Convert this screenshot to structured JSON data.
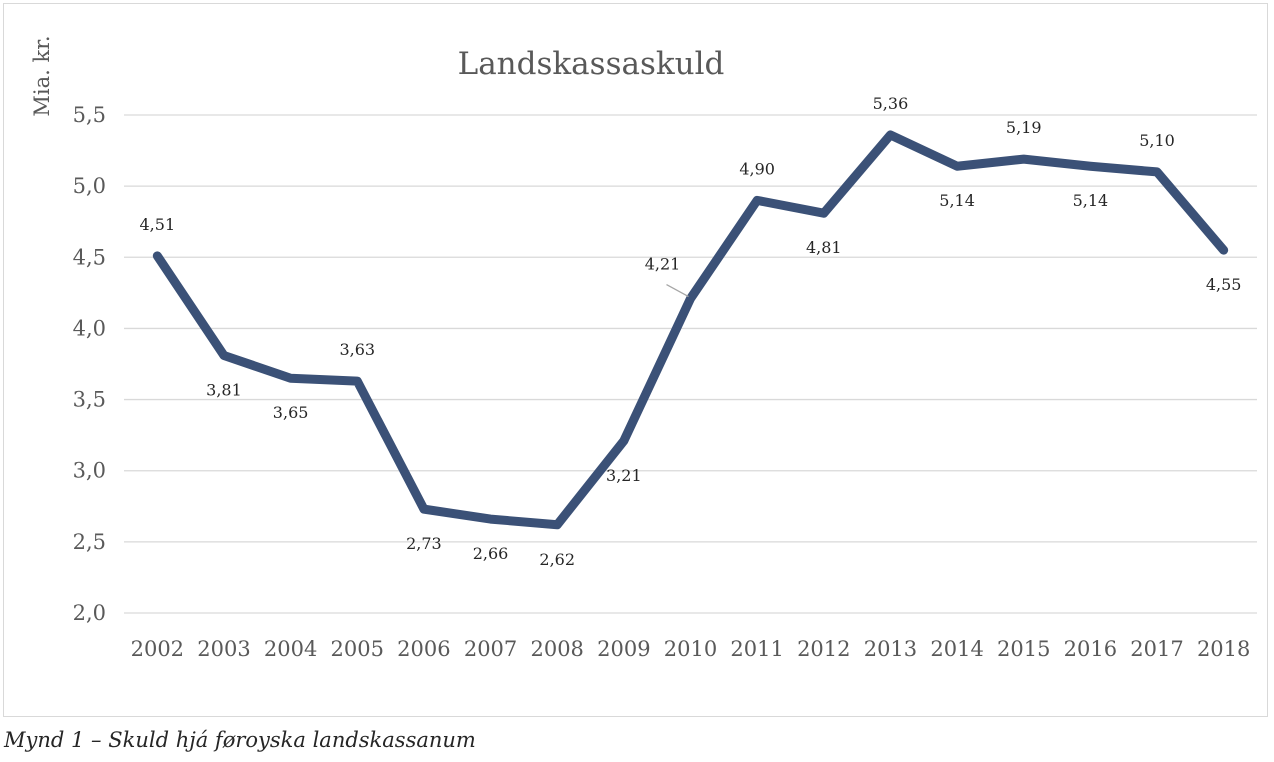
{
  "chart_data": {
    "type": "line",
    "title": "Landskassaskuld",
    "ylabel": "Mia. kr.",
    "xlabel": "",
    "categories": [
      "2002",
      "2003",
      "2004",
      "2005",
      "2006",
      "2007",
      "2008",
      "2009",
      "2010",
      "2011",
      "2012",
      "2013",
      "2014",
      "2015",
      "2016",
      "2017",
      "2018"
    ],
    "series": [
      {
        "name": "",
        "values": [
          4.51,
          3.81,
          3.65,
          3.63,
          2.73,
          2.66,
          2.62,
          3.21,
          4.21,
          4.9,
          4.81,
          5.36,
          5.14,
          5.19,
          5.14,
          5.1,
          4.55
        ]
      }
    ],
    "data_labels": [
      "4,51",
      "3,81",
      "3,65",
      "3,63",
      "2,73",
      "2,66",
      "2,62",
      "3,21",
      "4,21",
      "4,90",
      "4,81",
      "5,36",
      "5,14",
      "5,19",
      "5,14",
      "5,10",
      "4,55"
    ],
    "label_side": [
      "above",
      "below",
      "below",
      "above",
      "below",
      "below",
      "below",
      "below",
      "above",
      "above",
      "below",
      "above",
      "below",
      "above",
      "below",
      "above",
      "below"
    ],
    "ylim": [
      2.0,
      5.5
    ],
    "yticks": [
      2.0,
      2.5,
      3.0,
      3.5,
      4.0,
      4.5,
      5.0,
      5.5
    ],
    "ytick_labels": [
      "2,0",
      "2,5",
      "3,0",
      "3,5",
      "4,0",
      "4,5",
      "5,0",
      "5,5"
    ],
    "grid": true,
    "legend": "none",
    "line_color": "#3b5177"
  },
  "caption": "Mynd 1 – Skuld hjá føroyska landskassanum"
}
